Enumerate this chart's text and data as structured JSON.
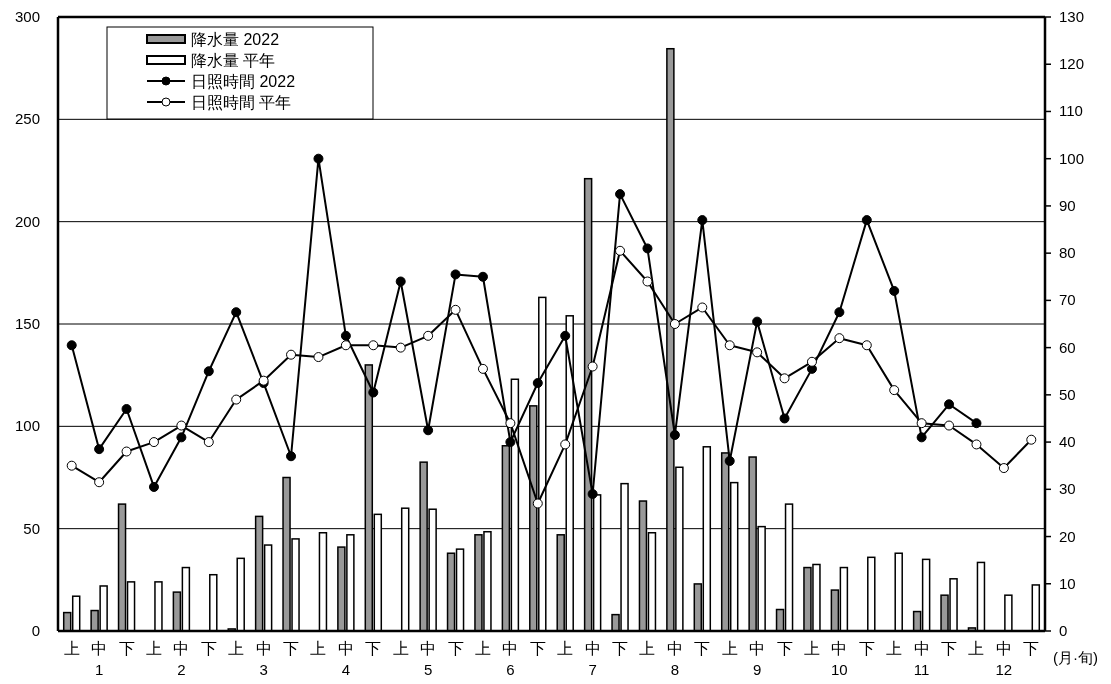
{
  "chart_data": {
    "type": "bar",
    "categories": [
      "上",
      "中",
      "下",
      "上",
      "中",
      "下",
      "上",
      "中",
      "下",
      "上",
      "中",
      "下",
      "上",
      "中",
      "下",
      "上",
      "中",
      "下",
      "上",
      "中",
      "下",
      "上",
      "中",
      "下",
      "上",
      "中",
      "下",
      "上",
      "中",
      "下",
      "上",
      "中",
      "下",
      "上",
      "中",
      "下"
    ],
    "annotations": [
      "1",
      "2",
      "3",
      "4",
      "5",
      "6",
      "7",
      "8",
      "9",
      "10",
      "11",
      "12",
      "(月·旬)"
    ],
    "series": [
      {
        "name": "降水量 2022",
        "color": "#999999",
        "values": [
          9,
          10,
          62,
          null,
          19,
          null,
          1,
          56,
          75,
          null,
          41,
          130,
          null,
          82.5,
          38,
          47,
          90.5,
          110,
          47,
          221,
          8,
          63.5,
          284.5,
          23,
          87,
          85,
          10.5,
          31,
          20,
          null,
          null,
          9.5,
          17.5,
          1.5,
          null,
          null
        ]
      },
      {
        "name": "降水量 平年",
        "color": "#ffffff",
        "values": [
          17,
          22,
          24,
          24,
          31,
          27.5,
          35.5,
          42,
          45,
          48,
          47,
          57,
          60,
          59.5,
          40,
          48.5,
          123,
          163,
          154,
          66.5,
          72,
          48,
          80,
          90,
          72.5,
          51,
          62,
          32.5,
          31,
          36,
          38,
          35,
          25.5,
          33.5,
          17.5,
          22.5
        ]
      },
      {
        "name": "日照時間 2022",
        "type": "line",
        "axis": "y2",
        "color": "#000000",
        "values": [
          60.5,
          38.5,
          47,
          30.5,
          41,
          55,
          67.5,
          52.5,
          37,
          100,
          62.5,
          50.5,
          74,
          42.5,
          75.5,
          75,
          40,
          52.5,
          62.5,
          29,
          92.5,
          81,
          41.5,
          87,
          36,
          65.5,
          45,
          55.5,
          67.5,
          87,
          72,
          41,
          48,
          44,
          null,
          null
        ]
      },
      {
        "name": "日照時間 平年",
        "type": "line",
        "axis": "y2",
        "color": "#ffffff",
        "values": [
          35,
          31.5,
          38,
          40,
          43.5,
          40,
          49,
          53,
          58.5,
          58,
          60.5,
          60.5,
          60,
          62.5,
          68,
          55.5,
          44,
          27,
          39.5,
          56,
          80.5,
          74,
          65,
          68.5,
          60.5,
          59,
          53.5,
          57,
          62,
          60.5,
          51,
          44,
          43.5,
          39.5,
          34.5,
          40.5
        ]
      }
    ],
    "ylim": [
      0,
      300
    ],
    "yticks": [
      0,
      50,
      100,
      150,
      200,
      250,
      300
    ],
    "y2lim": [
      0,
      130
    ],
    "y2ticks": [
      0,
      10,
      20,
      30,
      40,
      50,
      60,
      70,
      80,
      90,
      100,
      110,
      120,
      130
    ],
    "grid": "y",
    "legend": "top left",
    "marker": "circle",
    "line_style": "solid"
  }
}
